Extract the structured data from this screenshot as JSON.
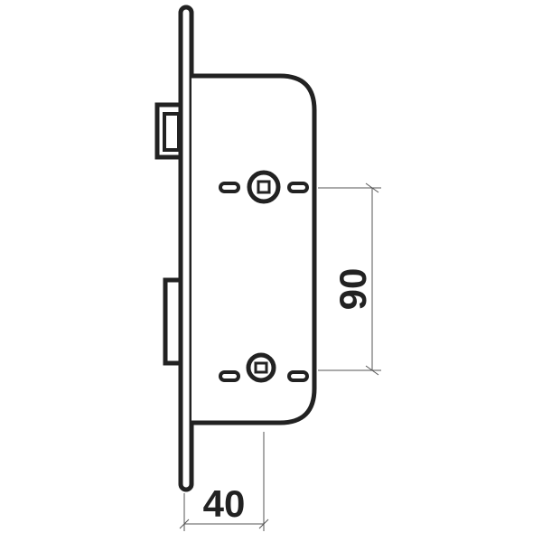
{
  "diagram": {
    "dimensions": {
      "backset": {
        "label": "40"
      },
      "spindle_to_cylinder": {
        "label": "90"
      }
    },
    "colors": {
      "stroke": "#222222",
      "fill": "#ffffff",
      "dimension_line": "#555555"
    }
  }
}
